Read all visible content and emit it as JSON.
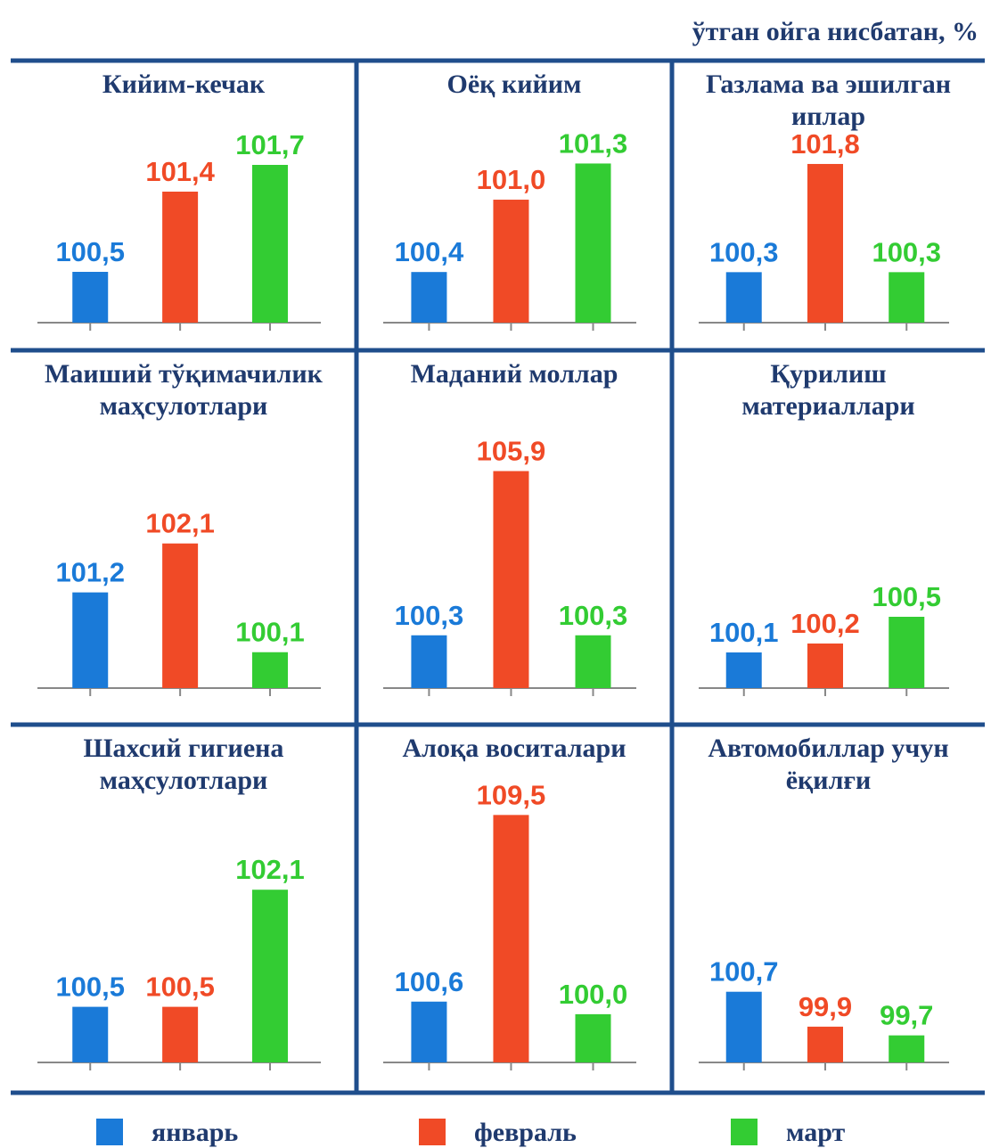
{
  "subtitle": "ўтган ойга нисбатан, %",
  "legend": {
    "labels": [
      "январь",
      "февраль",
      "март"
    ],
    "colors": [
      "#1a7ad8",
      "#f04a26",
      "#33cc33"
    ]
  },
  "chart_data": [
    {
      "type": "bar",
      "title": [
        "Кийим-кечак"
      ],
      "values": [
        100.5,
        101.4,
        101.7
      ],
      "value_labels": [
        "100,5",
        "101,4",
        "101,7"
      ],
      "ylim": [
        99.93,
        102.73
      ]
    },
    {
      "type": "bar",
      "title": [
        "Оёқ кийим"
      ],
      "values": [
        100.4,
        101.0,
        101.3
      ],
      "value_labels": [
        "100,4",
        "101,0",
        "101,3"
      ],
      "ylim": [
        99.98,
        102.05
      ]
    },
    {
      "type": "bar",
      "title": [
        "Газлама ва эшилган",
        "иплар"
      ],
      "values": [
        100.3,
        101.8,
        100.3
      ],
      "value_labels": [
        "100,3",
        "101,8",
        "100,3"
      ],
      "ylim": [
        99.6,
        103.06
      ]
    },
    {
      "type": "bar",
      "title": [
        "Маиший тўқимачилик",
        "маҳсулотлари"
      ],
      "values": [
        101.2,
        102.1,
        100.1
      ],
      "value_labels": [
        "101,2",
        "102,1",
        "100,1"
      ],
      "ylim": [
        99.44,
        104.03
      ]
    },
    {
      "type": "bar",
      "title": [
        "Маданий моллар"
      ],
      "values": [
        100.3,
        105.9,
        100.3
      ],
      "value_labels": [
        "100,3",
        "105,9",
        "100,3"
      ],
      "ylim": [
        98.5,
        107.01
      ]
    },
    {
      "type": "bar",
      "title": [
        "Қурилиш",
        "материаллари"
      ],
      "values": [
        100.1,
        100.2,
        100.5
      ],
      "value_labels": [
        "100,1",
        "100,2",
        "100,5"
      ],
      "ylim": [
        99.7,
        102.5
      ]
    },
    {
      "type": "bar",
      "title": [
        "Шахсий гигиена",
        "маҳсулотлари"
      ],
      "values": [
        100.5,
        100.5,
        102.1
      ],
      "value_labels": [
        "100,5",
        "100,5",
        "102,1"
      ],
      "ylim": [
        99.74,
        103.15
      ]
    },
    {
      "type": "bar",
      "title": [
        "Алоқа воситалари"
      ],
      "values": [
        100.6,
        109.5,
        100.0
      ],
      "value_labels": [
        "100,6",
        "109,5",
        "100,0"
      ],
      "ylim": [
        97.7,
        109.6
      ]
    },
    {
      "type": "bar",
      "title": [
        "Автомобиллар учун",
        "ёқилғи"
      ],
      "values": [
        100.7,
        99.9,
        99.7
      ],
      "value_labels": [
        "100,7",
        "99,9",
        "99,7"
      ],
      "ylim": [
        99.08,
        104.8
      ]
    }
  ]
}
